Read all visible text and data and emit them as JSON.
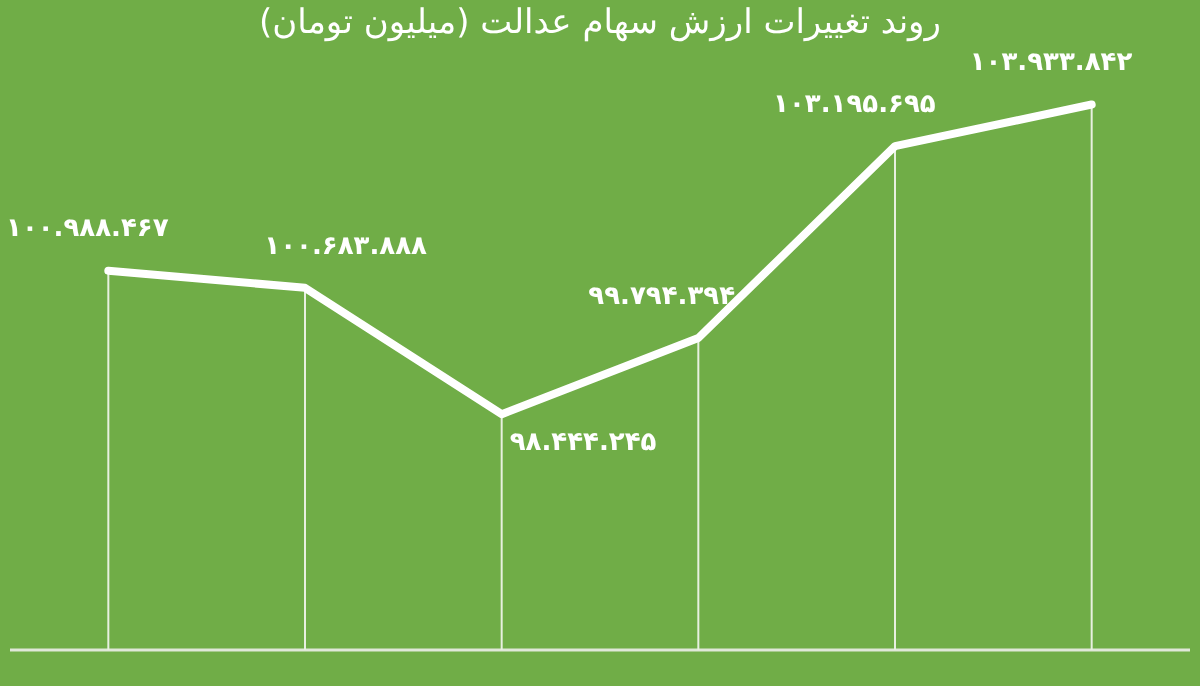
{
  "chart_data": {
    "type": "line",
    "title": "روند تغییرات ارزش سهام عدالت (میلیون تومان)",
    "categories": [
      null,
      null,
      null,
      null,
      null,
      null
    ],
    "series": [
      {
        "color": "#ffffff",
        "values": [
          100988467,
          100683888,
          98444245,
          99794394,
          103195695,
          103933842
        ],
        "value_labels": [
          "۱۰۰.۹۸۸.۴۶۷",
          "۱۰۰.۶۸۳.۸۸۸",
          "۹۸.۴۴۴.۲۴۵",
          "۹۹.۷۹۴.۳۹۴",
          "۱۰۳.۱۹۵.۶۹۵",
          "۱۰۳.۹۳۳.۸۴۲"
        ]
      }
    ],
    "grid": "x",
    "legend": false,
    "marker": "none",
    "line_style": "solid"
  }
}
